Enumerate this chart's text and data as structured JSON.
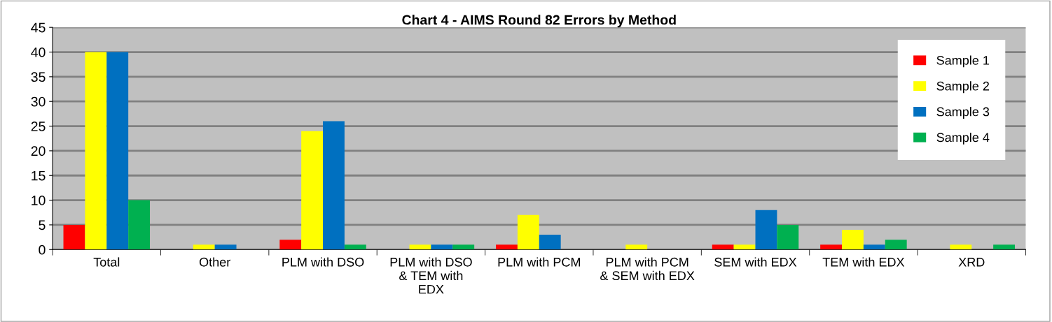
{
  "chart_data": {
    "type": "bar",
    "title": "Chart 4 - AIMS Round 82 Errors by Method",
    "categories": [
      "Total",
      "Other",
      "PLM with DSO",
      "PLM with DSO\n& TEM with\nEDX",
      "PLM with PCM",
      "PLM with PCM\n& SEM with EDX",
      "SEM with EDX",
      "TEM with EDX",
      "XRD"
    ],
    "series": [
      {
        "name": "Sample 1",
        "color": "#ff0000",
        "values": [
          5,
          0,
          2,
          0,
          1,
          0,
          1,
          1,
          0
        ]
      },
      {
        "name": "Sample 2",
        "color": "#ffff00",
        "values": [
          40,
          1,
          24,
          1,
          7,
          1,
          1,
          4,
          1
        ]
      },
      {
        "name": "Sample 3",
        "color": "#0070c0",
        "values": [
          40,
          1,
          26,
          1,
          3,
          0,
          8,
          1,
          0
        ]
      },
      {
        "name": "Sample 4",
        "color": "#00b050",
        "values": [
          10,
          0,
          1,
          1,
          0,
          0,
          5,
          2,
          1
        ]
      }
    ],
    "ylim": [
      0,
      45
    ],
    "yticks": [
      0,
      5,
      10,
      15,
      20,
      25,
      30,
      35,
      40,
      45
    ],
    "grid": "y",
    "legend": "top right"
  }
}
